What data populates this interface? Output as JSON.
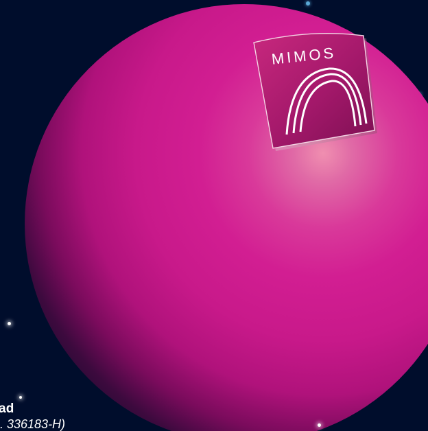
{
  "brand": {
    "logo_text": "MIMOS"
  },
  "footer": {
    "company_line_fragment": "ad",
    "company_reg_fragment": ". 336183-H)"
  },
  "colors": {
    "background": "#000d2c",
    "sphere_magenta": "#d21e92",
    "sphere_highlight": "#f08fb0",
    "logo_plate": "#a81a6e",
    "accent_dots": "#5aa8d6"
  },
  "icons": {
    "logo_mark": "triple-arch-icon"
  }
}
